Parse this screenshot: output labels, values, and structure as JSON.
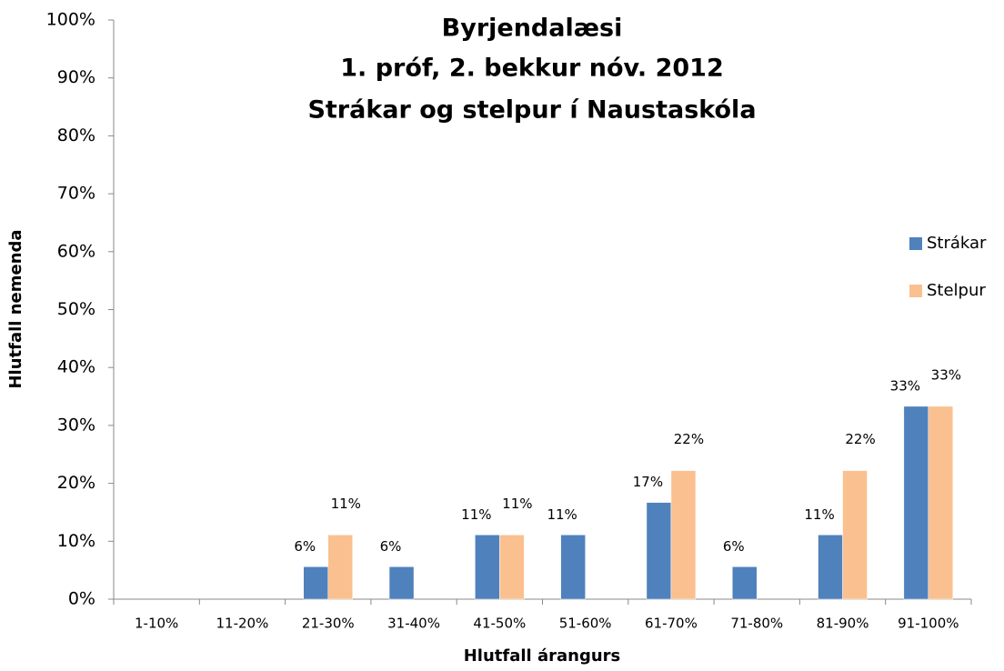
{
  "chart_data": {
    "type": "bar",
    "title": [
      "Byrjendalæsi",
      "1. próf, 2. bekkur nóv. 2012",
      "Strákar og stelpur í Naustaskóla"
    ],
    "x_label": "Hlutfall árangurs",
    "y_label": "Hlutfall nemenda",
    "categories": [
      "1-10%",
      "11-20%",
      "21-30%",
      "31-40%",
      "41-50%",
      "51-60%",
      "61-70%",
      "71-80%",
      "81-90%",
      "91-100%"
    ],
    "series": [
      {
        "name": "Strákar",
        "color": "#4f81bd",
        "values": [
          0,
          0,
          5.6,
          5.6,
          11.1,
          11.1,
          16.7,
          5.6,
          11.1,
          33.3
        ],
        "value_labels": [
          null,
          null,
          "6%",
          "6%",
          "11%",
          "11%",
          "17%",
          "6%",
          "11%",
          "33%"
        ]
      },
      {
        "name": "Stelpur",
        "color": "#fac090",
        "values": [
          0,
          0,
          11.1,
          0,
          11.1,
          0,
          22.2,
          0,
          22.2,
          33.3
        ],
        "value_labels": [
          null,
          null,
          "11%",
          null,
          "11%",
          null,
          "22%",
          null,
          "22%",
          "33%"
        ]
      }
    ],
    "ylim": [
      0,
      100
    ],
    "yticks": [
      {
        "value": 0,
        "label": "0%"
      },
      {
        "value": 10,
        "label": "10%"
      },
      {
        "value": 20,
        "label": "20%"
      },
      {
        "value": 30,
        "label": "30%"
      },
      {
        "value": 40,
        "label": "40%"
      },
      {
        "value": 50,
        "label": "50%"
      },
      {
        "value": 60,
        "label": "60%"
      },
      {
        "value": 70,
        "label": "70%"
      },
      {
        "value": 80,
        "label": "80%"
      },
      {
        "value": 90,
        "label": "90%"
      },
      {
        "value": 100,
        "label": "100%"
      }
    ],
    "legend": "right"
  }
}
